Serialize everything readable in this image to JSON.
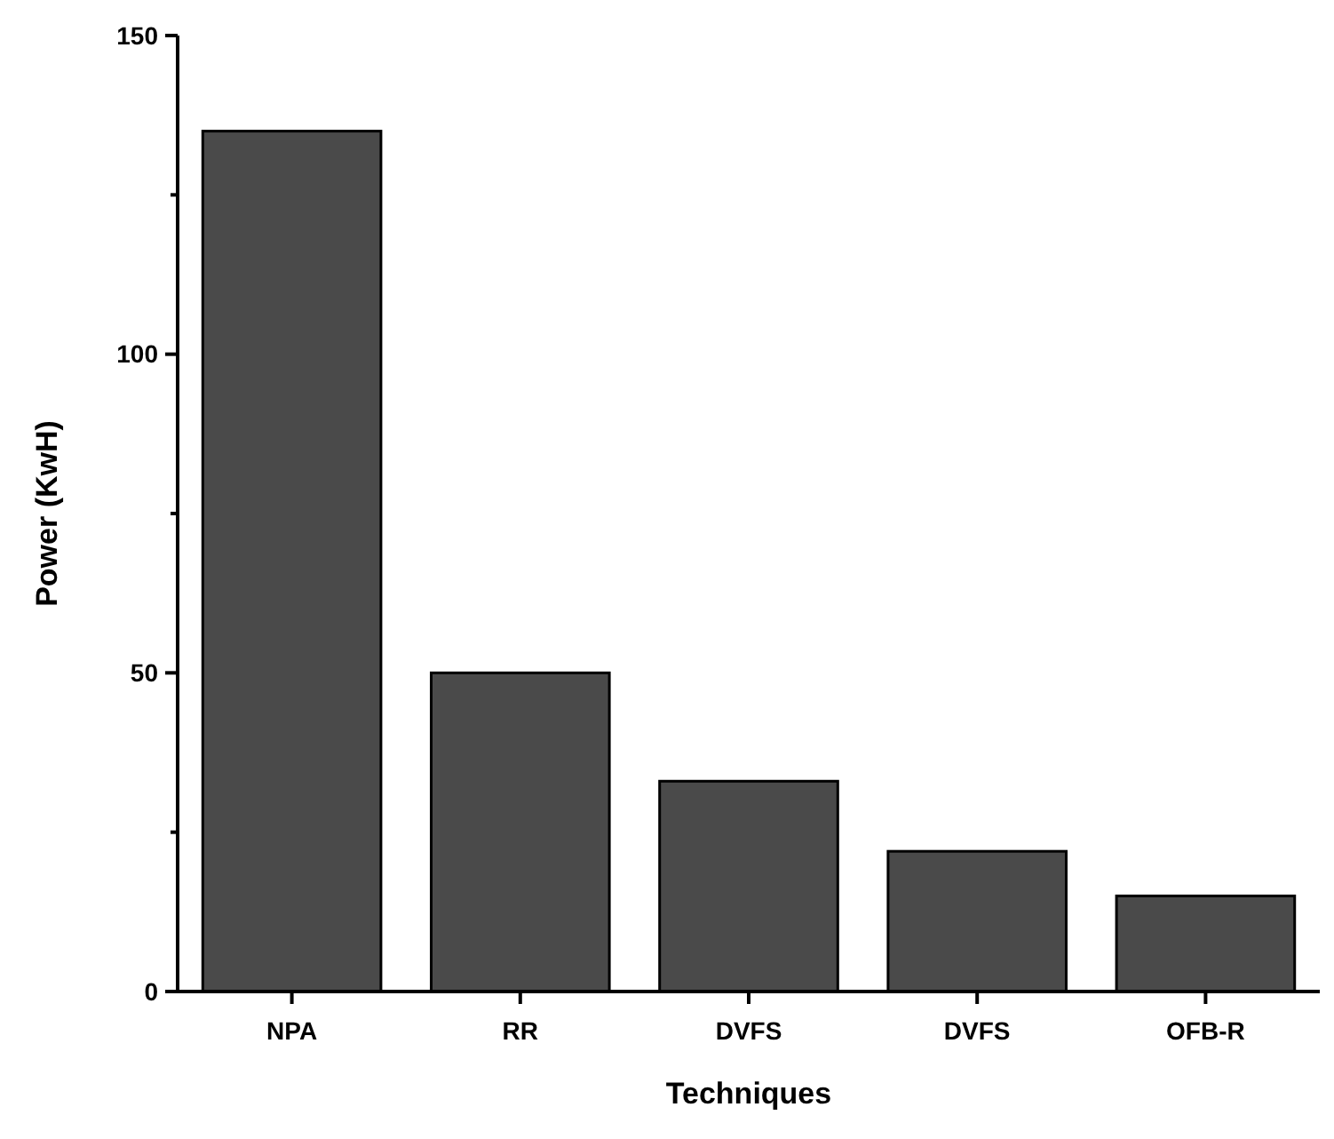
{
  "chart_data": {
    "type": "bar",
    "xlabel": "Techniques",
    "ylabel": "Power (KwH)",
    "categories": [
      "NPA",
      "RR",
      "DVFS",
      "DVFS",
      "OFB-R"
    ],
    "values": [
      135,
      50,
      33,
      22,
      15
    ],
    "color": "#4a4a4a",
    "ylim": [
      0,
      150
    ],
    "yticks": [
      0,
      {
        "value": 25,
        "label": null
      },
      50,
      {
        "value": 75,
        "label": null
      },
      100,
      {
        "value": 125,
        "label": null
      },
      150
    ],
    "grid": false
  }
}
